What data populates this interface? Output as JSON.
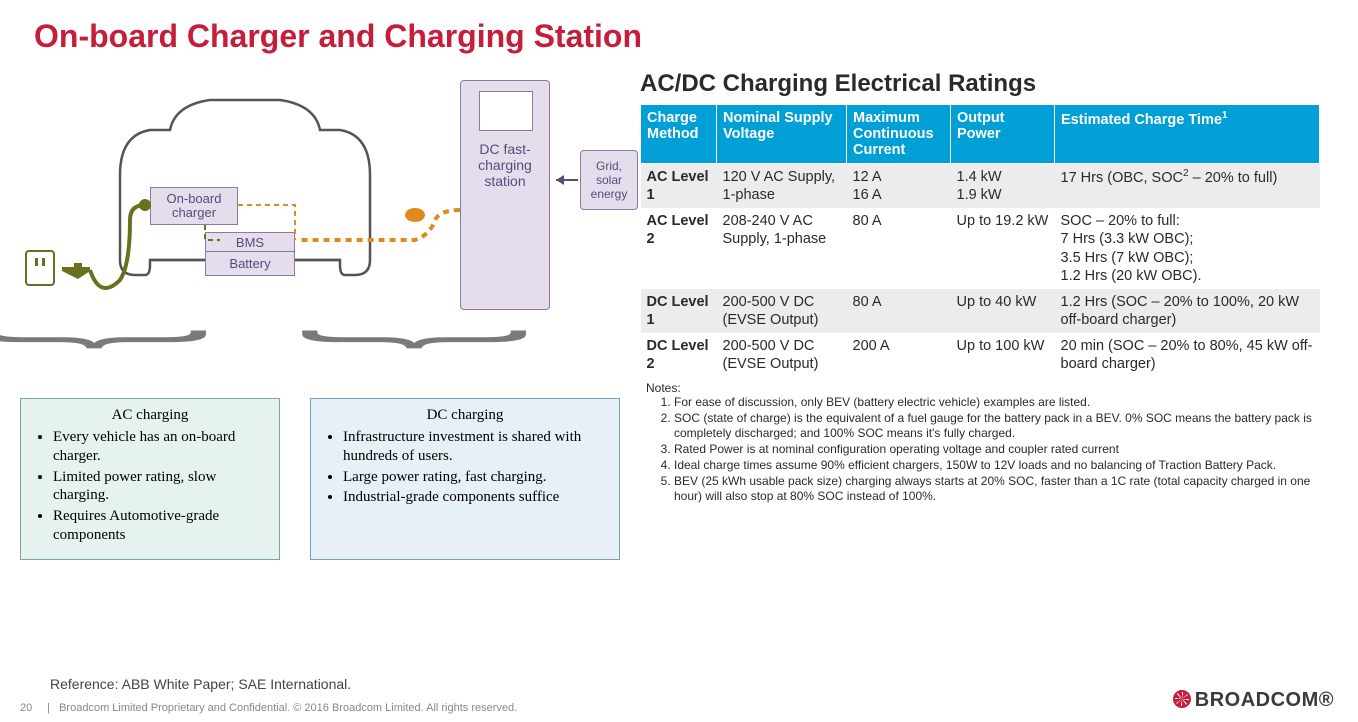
{
  "title": "On-board Charger and Charging Station",
  "colors": {
    "title": "#c41e3a",
    "table_header_bg": "#009fd6",
    "table_alt_row": "#ececec",
    "diagram_box_fill": "#e6ddec",
    "diagram_box_border": "#8a79a5",
    "ac_box_fill": "#e6f2f0",
    "ac_box_border": "#7aa89f",
    "dc_box_fill": "#e6f0f5",
    "dc_box_border": "#7a9fb8",
    "ac_cable": "#6b7020",
    "dc_cable": "#e08a1e",
    "car_outline": "#555"
  },
  "diagram": {
    "obc_label": "On-board charger",
    "bms_label": "BMS",
    "battery_label": "Battery",
    "dc_station_label": "DC fast-charging station",
    "grid_label": "Grid, solar energy"
  },
  "ac_box": {
    "title": "AC charging",
    "bullets": [
      "Every vehicle has an on-board charger.",
      "Limited power rating, slow charging.",
      "Requires Automotive-grade components"
    ]
  },
  "dc_box": {
    "title": "DC charging",
    "bullets": [
      "Infrastructure investment is shared with hundreds of users.",
      "Large power rating, fast charging.",
      "Industrial-grade components suffice"
    ]
  },
  "table": {
    "title": "AC/DC Charging Electrical Ratings",
    "columns": [
      "Charge Method",
      "Nominal Supply Voltage",
      "Maximum Continuous Current",
      "Output Power",
      "Estimated Charge Time¹"
    ],
    "col_widths": [
      "76px",
      "130px",
      "104px",
      "104px",
      "auto"
    ],
    "rows": [
      {
        "alt": true,
        "cells": [
          "AC Level 1",
          "120 V AC Supply, 1-phase",
          "12 A\n16 A",
          "1.4 kW\n1.9 kW",
          "17 Hrs (OBC, SOC² – 20% to full)"
        ]
      },
      {
        "alt": false,
        "cells": [
          "AC Level 2",
          "208-240 V AC Supply, 1-phase",
          "80 A",
          "Up to 19.2 kW",
          "SOC – 20% to full:\n7 Hrs (3.3 kW OBC);\n3.5 Hrs (7 kW OBC);\n1.2 Hrs (20 kW OBC)."
        ]
      },
      {
        "alt": true,
        "cells": [
          "DC Level 1",
          "200-500 V DC (EVSE Output)",
          "80 A",
          "Up to 40 kW",
          "1.2 Hrs (SOC – 20% to 100%, 20 kW off-board charger)"
        ]
      },
      {
        "alt": false,
        "cells": [
          "DC Level 2",
          "200-500 V DC (EVSE Output)",
          "200 A",
          "Up to 100 kW",
          "20 min (SOC – 20% to 80%, 45 kW off-board charger)"
        ]
      }
    ]
  },
  "notes": {
    "heading": "Notes:",
    "items": [
      "For ease of discussion, only BEV (battery electric vehicle) examples are listed.",
      "SOC (state of charge) is the equivalent of a fuel gauge for the battery pack in a BEV. 0% SOC means the battery pack is completely discharged; and 100% SOC means it's fully charged.",
      "Rated Power is at nominal configuration operating voltage and coupler rated current",
      "Ideal charge times assume 90% efficient chargers, 150W to 12V loads and no balancing of Traction Battery Pack.",
      "BEV (25 kWh usable pack size) charging always starts at 20% SOC, faster than a 1C rate (total capacity charged in one hour) will also stop at 80% SOC instead of 100%."
    ]
  },
  "reference": "Reference: ABB White Paper; SAE International.",
  "footer": {
    "page": "20",
    "sep": "|",
    "text": "Broadcom Limited Proprietary and Confidential.  © 2016 Broadcom Limited.  All rights reserved."
  },
  "logo_text": "BROADCOM®"
}
